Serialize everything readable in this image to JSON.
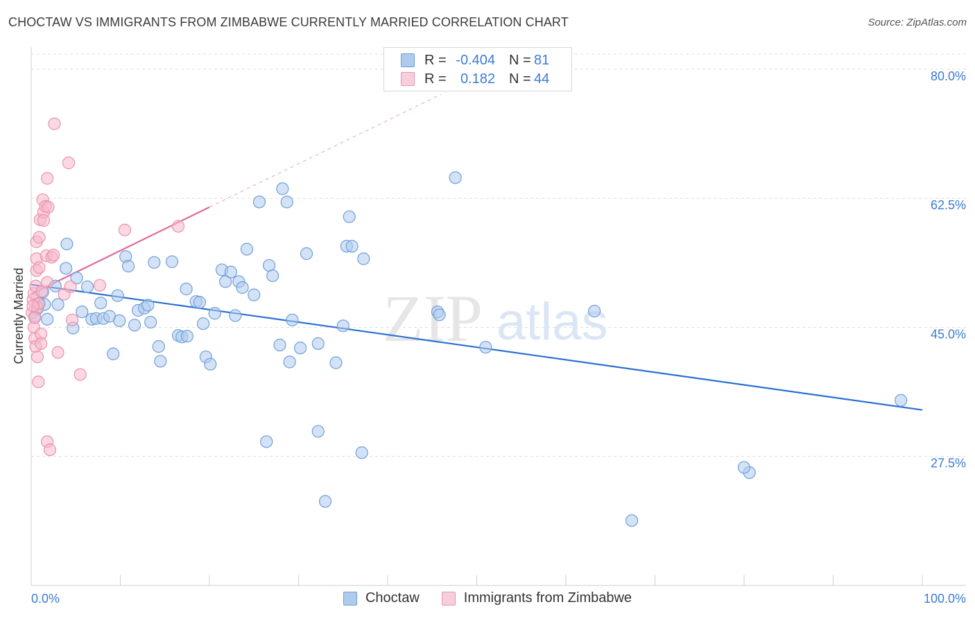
{
  "title": "CHOCTAW VS IMMIGRANTS FROM ZIMBABWE CURRENTLY MARRIED CORRELATION CHART",
  "source": "Source: ZipAtlas.com",
  "watermark": {
    "zip": "ZIP",
    "atlas": "atlas"
  },
  "legend": {
    "rows": [
      {
        "r_label": "R =",
        "r_value": "-0.404",
        "n_label": "N =",
        "n_value": "81"
      },
      {
        "r_label": "R =",
        "r_value": "0.182",
        "n_label": "N =",
        "n_value": "44"
      }
    ]
  },
  "colors": {
    "choctaw_fill": "#aecbee",
    "choctaw_stroke": "#6f9fd8",
    "choctaw_line": "#2a6fd1",
    "zimbabwe_fill": "#f7b8cb",
    "zimbabwe_stroke": "#e992ad",
    "zimbabwe_line": "#e06896",
    "tick_label": "#3a7bd5",
    "grid": "#dcdcdc"
  },
  "chart_data": {
    "type": "scatter",
    "xlabel": "",
    "ylabel": "Currently Married",
    "xlim": [
      0,
      100
    ],
    "ylim": [
      10,
      83
    ],
    "x_tick_labels": [
      "0.0%",
      "100.0%"
    ],
    "y_ticks": [
      27.5,
      45.0,
      62.5,
      80.0
    ],
    "y_tick_labels": [
      "27.5%",
      "45.0%",
      "62.5%",
      "80.0%"
    ],
    "grid": true,
    "series": [
      {
        "name": "Choctaw",
        "r": -0.404,
        "n": 81,
        "trend": {
          "x": [
            0,
            100
          ],
          "y": [
            50.8,
            33.8
          ]
        },
        "points": [
          [
            0.4,
            46.5
          ],
          [
            0.7,
            47.5
          ],
          [
            0.9,
            48.2
          ],
          [
            1.3,
            49.8
          ],
          [
            1.5,
            48.1
          ],
          [
            1.8,
            46.1
          ],
          [
            2.7,
            50.6
          ],
          [
            3.0,
            48.1
          ],
          [
            3.9,
            53.0
          ],
          [
            4.0,
            56.3
          ],
          [
            4.7,
            44.9
          ],
          [
            5.1,
            51.7
          ],
          [
            5.7,
            47.1
          ],
          [
            6.3,
            50.5
          ],
          [
            6.8,
            46.1
          ],
          [
            7.3,
            46.2
          ],
          [
            7.8,
            48.3
          ],
          [
            8.1,
            46.2
          ],
          [
            8.8,
            46.5
          ],
          [
            9.2,
            41.4
          ],
          [
            9.7,
            49.3
          ],
          [
            9.9,
            45.9
          ],
          [
            10.6,
            54.6
          ],
          [
            10.9,
            53.3
          ],
          [
            11.6,
            45.3
          ],
          [
            12.0,
            47.3
          ],
          [
            12.7,
            47.6
          ],
          [
            13.1,
            48.0
          ],
          [
            13.4,
            45.7
          ],
          [
            13.8,
            53.8
          ],
          [
            14.3,
            42.4
          ],
          [
            14.5,
            40.4
          ],
          [
            15.8,
            53.9
          ],
          [
            16.5,
            43.9
          ],
          [
            16.9,
            43.7
          ],
          [
            17.5,
            43.8
          ],
          [
            17.4,
            50.2
          ],
          [
            18.5,
            48.5
          ],
          [
            18.9,
            48.4
          ],
          [
            19.3,
            45.5
          ],
          [
            19.6,
            41.0
          ],
          [
            20.1,
            40.0
          ],
          [
            20.6,
            46.9
          ],
          [
            21.4,
            52.8
          ],
          [
            21.8,
            51.2
          ],
          [
            22.4,
            52.5
          ],
          [
            22.9,
            46.6
          ],
          [
            23.3,
            51.2
          ],
          [
            23.7,
            50.4
          ],
          [
            24.2,
            55.6
          ],
          [
            25.0,
            49.4
          ],
          [
            25.6,
            62.0
          ],
          [
            26.7,
            53.4
          ],
          [
            27.1,
            52.0
          ],
          [
            28.2,
            63.8
          ],
          [
            28.7,
            62.0
          ],
          [
            26.4,
            29.5
          ],
          [
            27.9,
            42.6
          ],
          [
            29.0,
            40.3
          ],
          [
            29.3,
            46.0
          ],
          [
            30.2,
            42.2
          ],
          [
            30.9,
            55.0
          ],
          [
            32.2,
            42.8
          ],
          [
            32.2,
            30.9
          ],
          [
            33.0,
            21.4
          ],
          [
            34.2,
            40.2
          ],
          [
            35.0,
            45.2
          ],
          [
            35.4,
            56.0
          ],
          [
            35.7,
            60.0
          ],
          [
            36.0,
            56.0
          ],
          [
            37.3,
            54.3
          ],
          [
            37.1,
            28.0
          ],
          [
            45.6,
            47.1
          ],
          [
            45.8,
            46.7
          ],
          [
            47.6,
            65.3
          ],
          [
            51.0,
            42.3
          ],
          [
            63.2,
            47.2
          ],
          [
            67.4,
            18.8
          ],
          [
            80.6,
            25.3
          ],
          [
            80.0,
            26.0
          ],
          [
            97.6,
            35.1
          ]
        ]
      },
      {
        "name": "Immigrants from Zimbabwe",
        "r": 0.182,
        "n": 44,
        "trend": {
          "x": [
            0,
            20
          ],
          "y": [
            49.5,
            61.3
          ]
        },
        "trend_extension": {
          "x": [
            20,
            46
          ],
          "y": [
            61.3,
            76.6
          ]
        },
        "points": [
          [
            0.1,
            47.0
          ],
          [
            0.2,
            48.7
          ],
          [
            0.3,
            45.0
          ],
          [
            0.3,
            49.6
          ],
          [
            0.4,
            43.5
          ],
          [
            0.5,
            50.6
          ],
          [
            0.5,
            42.4
          ],
          [
            0.6,
            56.6
          ],
          [
            0.6,
            52.7
          ],
          [
            0.6,
            54.3
          ],
          [
            0.7,
            41.0
          ],
          [
            0.7,
            47.7
          ],
          [
            0.8,
            48.2
          ],
          [
            0.8,
            37.6
          ],
          [
            0.9,
            53.1
          ],
          [
            0.9,
            57.2
          ],
          [
            1.0,
            59.6
          ],
          [
            1.1,
            44.1
          ],
          [
            1.1,
            42.8
          ],
          [
            1.2,
            49.9
          ],
          [
            1.3,
            62.3
          ],
          [
            1.4,
            60.6
          ],
          [
            1.4,
            59.5
          ],
          [
            1.6,
            61.4
          ],
          [
            1.7,
            54.7
          ],
          [
            1.8,
            51.1
          ],
          [
            1.8,
            65.2
          ],
          [
            1.8,
            29.5
          ],
          [
            1.9,
            61.3
          ],
          [
            2.1,
            28.4
          ],
          [
            2.3,
            54.5
          ],
          [
            2.5,
            54.8
          ],
          [
            2.6,
            72.6
          ],
          [
            3.0,
            41.6
          ],
          [
            3.7,
            49.5
          ],
          [
            4.2,
            67.3
          ],
          [
            4.4,
            50.5
          ],
          [
            4.6,
            46.0
          ],
          [
            5.5,
            38.6
          ],
          [
            7.7,
            50.7
          ],
          [
            10.5,
            58.2
          ],
          [
            16.5,
            58.7
          ],
          [
            0.2,
            47.9
          ],
          [
            0.4,
            46.3
          ]
        ]
      }
    ]
  }
}
